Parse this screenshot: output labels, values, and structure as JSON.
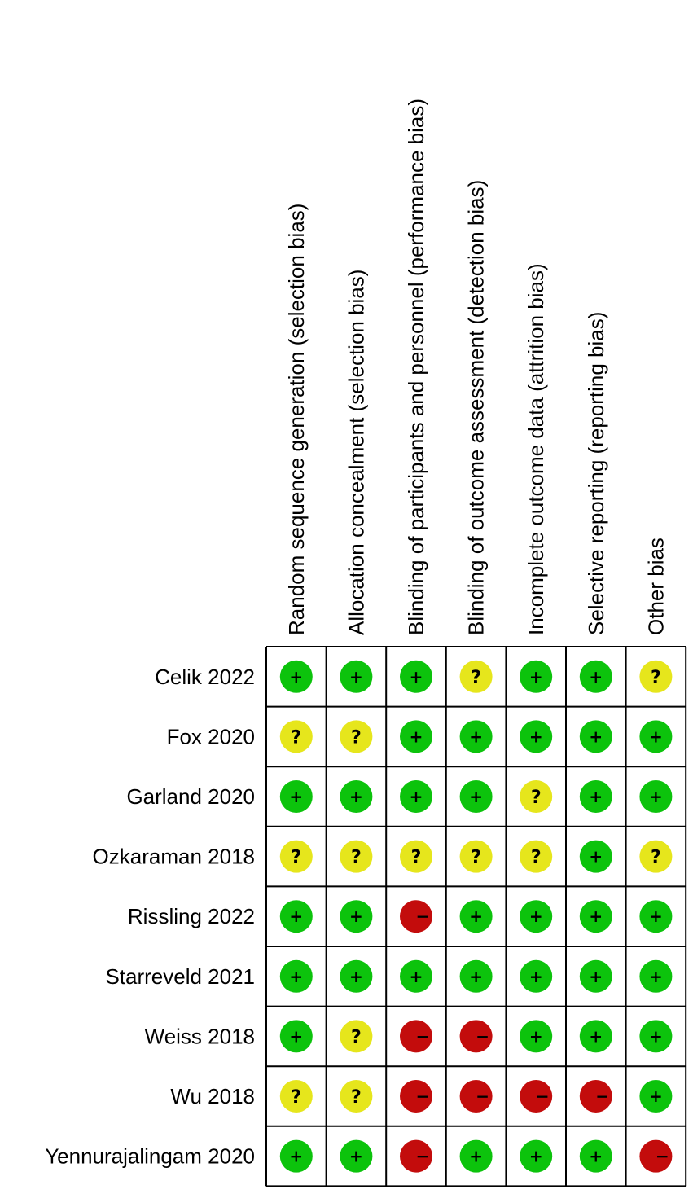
{
  "chart_data": {
    "type": "table",
    "domains": [
      "Random sequence generation (selection bias)",
      "Allocation concealment (selection bias)",
      "Blinding of participants and personnel (performance bias)",
      "Blinding of outcome assessment (detection bias)",
      "Incomplete outcome data (attrition bias)",
      "Selective reporting (reporting bias)",
      "Other bias"
    ],
    "studies": [
      "Celik 2022",
      "Fox 2020",
      "Garland 2020",
      "Ozkaraman 2018",
      "Rissling 2022",
      "Starreveld 2021",
      "Weiss 2018",
      "Wu 2018",
      "Yennurajalingam 2020"
    ],
    "judgements": [
      [
        "low",
        "low",
        "low",
        "unclear",
        "low",
        "low",
        "unclear"
      ],
      [
        "unclear",
        "unclear",
        "low",
        "low",
        "low",
        "low",
        "low"
      ],
      [
        "low",
        "low",
        "low",
        "low",
        "unclear",
        "low",
        "low"
      ],
      [
        "unclear",
        "unclear",
        "unclear",
        "unclear",
        "unclear",
        "low",
        "unclear"
      ],
      [
        "low",
        "low",
        "high",
        "low",
        "low",
        "low",
        "low"
      ],
      [
        "low",
        "low",
        "low",
        "low",
        "low",
        "low",
        "low"
      ],
      [
        "low",
        "unclear",
        "high",
        "high",
        "low",
        "low",
        "low"
      ],
      [
        "unclear",
        "unclear",
        "high",
        "high",
        "high",
        "high",
        "low"
      ],
      [
        "low",
        "low",
        "high",
        "low",
        "low",
        "low",
        "high"
      ]
    ],
    "legend": {
      "low": {
        "symbol": "+",
        "color": "#0cc30c"
      },
      "unclear": {
        "symbol": "?",
        "color": "#e6e61c"
      },
      "high": {
        "symbol": "−",
        "color": "#c30c0c"
      }
    }
  }
}
